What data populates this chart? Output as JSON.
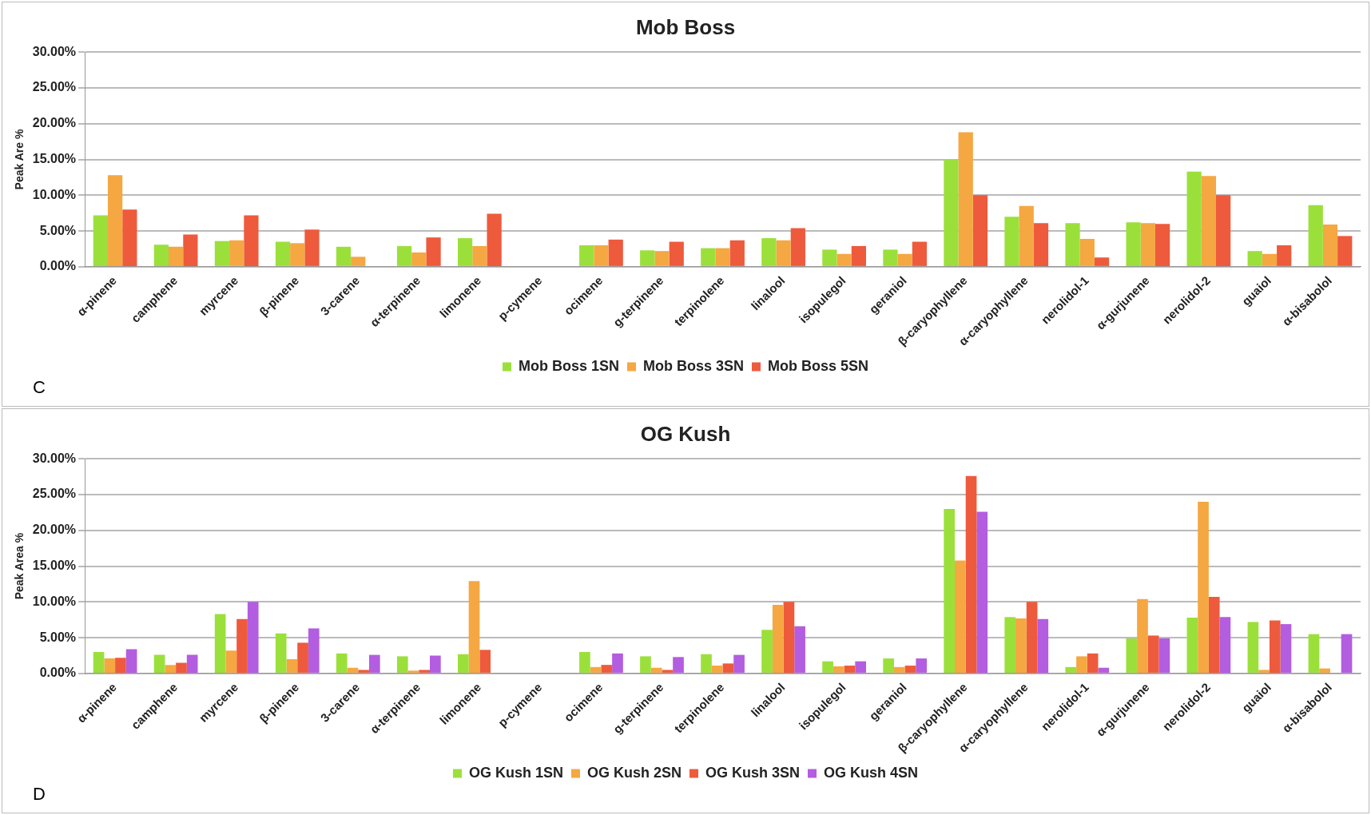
{
  "chart_data": [
    {
      "type": "bar",
      "title": "Mob Boss",
      "ylabel": "Peak Are %",
      "annotations": [
        "C"
      ],
      "categories": [
        "α-pinene",
        "camphene",
        "myrcene",
        "β-pinene",
        "3-carene",
        "α-terpinene",
        "limonene",
        "p-cymene",
        "ocimene",
        "g-terpinene",
        "terpinolene",
        "linalool",
        "isopulegol",
        "geraniol",
        "β-caryophyllene",
        "α-caryophyllene",
        "nerolidol-1",
        "α-gurjunene",
        "nerolidol-2",
        "guaiol",
        "α-bisabolol"
      ],
      "series": [
        {
          "name": "Mob Boss 1SN",
          "color": "#9be03a",
          "values": [
            7.2,
            3.1,
            3.6,
            3.5,
            2.8,
            2.9,
            4.0,
            0,
            3.0,
            2.3,
            2.6,
            4.0,
            2.4,
            2.4,
            15.0,
            7.0,
            6.1,
            6.2,
            13.3,
            2.2,
            8.6
          ]
        },
        {
          "name": "Mob Boss 3SN",
          "color": "#f5a742",
          "values": [
            12.8,
            2.8,
            3.7,
            3.3,
            1.4,
            2.0,
            2.9,
            0,
            3.0,
            2.2,
            2.6,
            3.7,
            1.8,
            1.8,
            18.8,
            8.5,
            3.9,
            6.1,
            12.7,
            1.8,
            5.9
          ]
        },
        {
          "name": "Mob Boss 5SN",
          "color": "#ee5a3c",
          "values": [
            8.0,
            4.5,
            7.2,
            5.2,
            0,
            4.1,
            7.4,
            0,
            3.8,
            3.5,
            3.7,
            5.4,
            2.9,
            3.5,
            10.0,
            6.1,
            1.3,
            6.0,
            10.0,
            3.0,
            4.3
          ]
        }
      ],
      "ylim": [
        0,
        30
      ],
      "yticks": [
        {
          "value": 0,
          "label": "0.00%"
        },
        {
          "value": 5,
          "label": "5.00%"
        },
        {
          "value": 10,
          "label": "10.00%"
        },
        {
          "value": 15,
          "label": "15.00%"
        },
        {
          "value": 20,
          "label": "20.00%"
        },
        {
          "value": 25,
          "label": "25.00%"
        },
        {
          "value": 30,
          "label": "30.00%"
        }
      ],
      "grid": "y",
      "legend": "bottom"
    },
    {
      "type": "bar",
      "title": "OG Kush",
      "ylabel": "Peak Area %",
      "annotations": [
        "D"
      ],
      "categories": [
        "α-pinene",
        "camphene",
        "myrcene",
        "β-pinene",
        "3-carene",
        "α-terpinene",
        "limonene",
        "p-cymene",
        "ocimene",
        "g-terpinene",
        "terpinolene",
        "linalool",
        "isopulegol",
        "geraniol",
        "β-caryophyllene",
        "α-caryophyllene",
        "nerolidol-1",
        "α-gurjunene",
        "nerolidol-2",
        "guaiol",
        "α-bisabolol"
      ],
      "series": [
        {
          "name": "OG Kush 1SN",
          "color": "#9be03a",
          "values": [
            3.0,
            2.6,
            8.3,
            5.6,
            2.8,
            2.4,
            2.7,
            0,
            3.0,
            2.4,
            2.7,
            6.1,
            1.7,
            2.1,
            23.0,
            7.9,
            0.9,
            4.9,
            7.8,
            7.2,
            5.5
          ]
        },
        {
          "name": "OG Kush 2SN",
          "color": "#f5a742",
          "values": [
            2.1,
            1.2,
            3.2,
            2.0,
            0.8,
            0.4,
            12.9,
            0,
            0.9,
            0.8,
            1.1,
            9.6,
            1.0,
            0.9,
            15.8,
            7.7,
            2.4,
            10.4,
            24.0,
            0.5,
            0.7
          ]
        },
        {
          "name": "OG Kush 3SN",
          "color": "#ee5a3c",
          "values": [
            2.2,
            1.5,
            7.6,
            4.3,
            0.5,
            0.5,
            3.3,
            0,
            1.2,
            0.5,
            1.4,
            10.0,
            1.1,
            1.1,
            27.6,
            10.0,
            2.8,
            5.3,
            10.7,
            7.4,
            0
          ]
        },
        {
          "name": "OG Kush 4SN",
          "color": "#b35de0",
          "values": [
            3.4,
            2.6,
            10.0,
            6.3,
            2.6,
            2.5,
            0,
            0,
            2.8,
            2.3,
            2.6,
            6.6,
            1.7,
            2.1,
            22.6,
            7.6,
            0.8,
            4.9,
            7.9,
            6.9,
            5.5
          ]
        }
      ],
      "ylim": [
        0,
        30
      ],
      "yticks": [
        {
          "value": 0,
          "label": "0.00%"
        },
        {
          "value": 5,
          "label": "5.00%"
        },
        {
          "value": 10,
          "label": "10.00%"
        },
        {
          "value": 15,
          "label": "15.00%"
        },
        {
          "value": 20,
          "label": "20.00%"
        },
        {
          "value": 25,
          "label": "25.00%"
        },
        {
          "value": 30,
          "label": "30.00%"
        }
      ],
      "grid": "y",
      "legend": "bottom"
    }
  ]
}
